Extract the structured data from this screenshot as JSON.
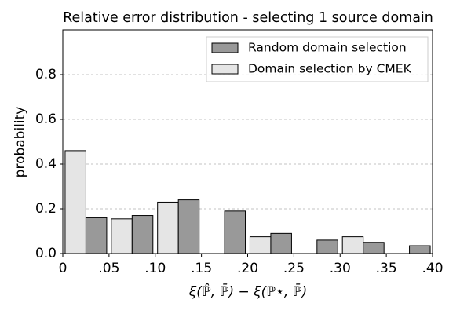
{
  "chart_data": {
    "type": "histogram",
    "title": "Relative error distribution - selecting 1 source domain",
    "xlabel": "ξ(ℙ̂, ℙ̄) − ξ(ℙ⋆, ℙ̄)",
    "ylabel": "probability",
    "bins": [
      0,
      0.05,
      0.1,
      0.15,
      0.2,
      0.25,
      0.3,
      0.35,
      0.4
    ],
    "series": [
      {
        "name": "Domain selection by CMEK",
        "color": "#e5e5e5",
        "values": [
          0.46,
          0.155,
          0.23,
          0,
          0.075,
          0,
          0.075,
          0
        ]
      },
      {
        "name": "Random domain selection",
        "color": "#999999",
        "values": [
          0.16,
          0.17,
          0.24,
          0.19,
          0.09,
          0.06,
          0.05,
          0.035
        ]
      }
    ],
    "legend_order": [
      1,
      0
    ],
    "legend": "upper right",
    "xlim": [
      0,
      0.4
    ],
    "xticks": [
      0,
      {
        "value": 0.05,
        "label": ".05"
      },
      {
        "value": 0.1,
        "label": ".10"
      },
      {
        "value": 0.15,
        "label": ".15"
      },
      {
        "value": 0.2,
        "label": ".20"
      },
      {
        "value": 0.25,
        "label": ".25"
      },
      {
        "value": 0.3,
        "label": ".30"
      },
      {
        "value": 0.35,
        "label": ".35"
      },
      {
        "value": 0.4,
        "label": ".40"
      }
    ],
    "ylim": [
      0,
      1.0
    ],
    "yticks": [
      {
        "value": 0,
        "label": "0.0"
      },
      0.2,
      0.4,
      0.6,
      0.8
    ],
    "grid": true
  }
}
